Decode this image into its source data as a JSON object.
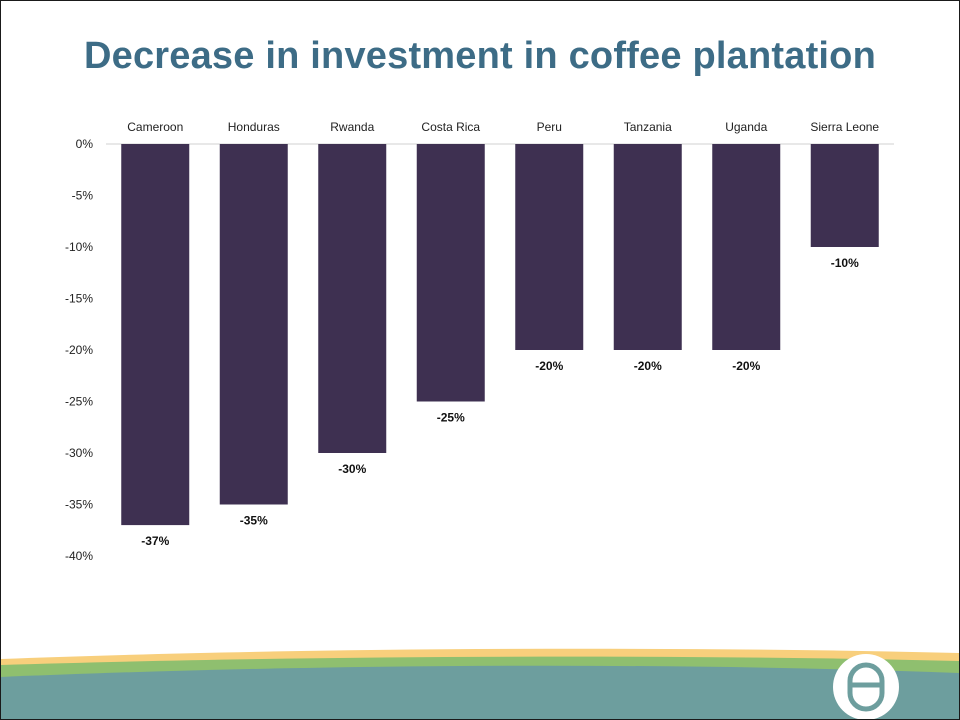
{
  "slide": {
    "title": "Decrease in investment in coffee plantation"
  },
  "chart_data": {
    "type": "bar",
    "title": "Decrease in investment in coffee plantation",
    "categories": [
      "Cameroon",
      "Honduras",
      "Rwanda",
      "Costa Rica",
      "Peru",
      "Tanzania",
      "Uganda",
      "Sierra Leone"
    ],
    "values": [
      -37,
      -35,
      -30,
      -25,
      -20,
      -20,
      -20,
      -10
    ],
    "data_labels": [
      "-37%",
      "-35%",
      "-30%",
      "-25%",
      "-20%",
      "-20%",
      "-20%",
      "-10%"
    ],
    "y_ticks": [
      0,
      -5,
      -10,
      -15,
      -20,
      -25,
      -30,
      -35,
      -40
    ],
    "y_tick_labels": [
      "0%",
      "-5%",
      "-10%",
      "-15%",
      "-20%",
      "-25%",
      "-30%",
      "-35%",
      "-40%"
    ],
    "ylim": [
      -40,
      0
    ],
    "xlabel": "",
    "ylabel": "",
    "category_axis_position": "top",
    "grid": false,
    "legend": "none",
    "bar_color": "#3e3051"
  },
  "colors": {
    "title": "#3d6c86",
    "footer_teal": "#6d9e9e",
    "footer_green": "#8fbf6f",
    "footer_yellow": "#f8cf7c"
  },
  "logo": {
    "icon": "coffee-bean-logo-icon"
  }
}
